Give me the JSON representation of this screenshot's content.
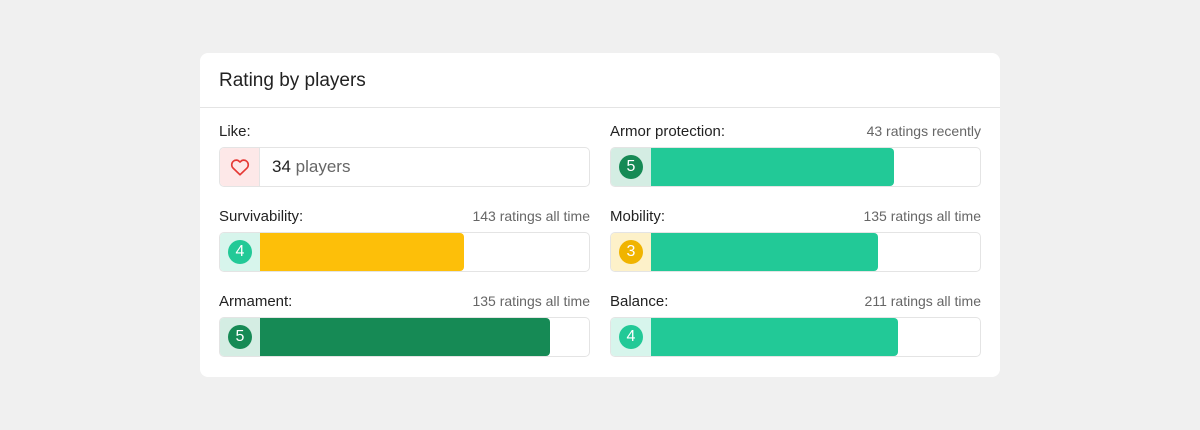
{
  "card": {
    "title": "Rating by players"
  },
  "like": {
    "label": "Like:",
    "count": "34",
    "unit": "players",
    "icon": "heart-icon"
  },
  "ratings": [
    {
      "id": "armor-protection",
      "label": "Armor protection:",
      "meta": "43 ratings recently",
      "score": "5",
      "fill_fraction": 0.74,
      "fill_color": "#22c997",
      "badge_color": "#168a55",
      "badge_bg": "#d4ede3"
    },
    {
      "id": "survivability",
      "label": "Survivability:",
      "meta": "143 ratings all time",
      "score": "4",
      "fill_fraction": 0.62,
      "fill_color": "#fdbf09",
      "badge_color": "#22c997",
      "badge_bg": "#d7f5ec"
    },
    {
      "id": "mobility",
      "label": "Mobility:",
      "meta": "135 ratings all time",
      "score": "3",
      "fill_fraction": 0.69,
      "fill_color": "#22c997",
      "badge_color": "#f0b400",
      "badge_bg": "#fdf1c9"
    },
    {
      "id": "armament",
      "label": "Armament:",
      "meta": "135 ratings all time",
      "score": "5",
      "fill_fraction": 0.88,
      "fill_color": "#168a55",
      "badge_color": "#168a55",
      "badge_bg": "#d4ede3"
    },
    {
      "id": "balance",
      "label": "Balance:",
      "meta": "211 ratings all time",
      "score": "4",
      "fill_fraction": 0.75,
      "fill_color": "#22c997",
      "badge_color": "#22c997",
      "badge_bg": "#d7f5ec"
    }
  ]
}
